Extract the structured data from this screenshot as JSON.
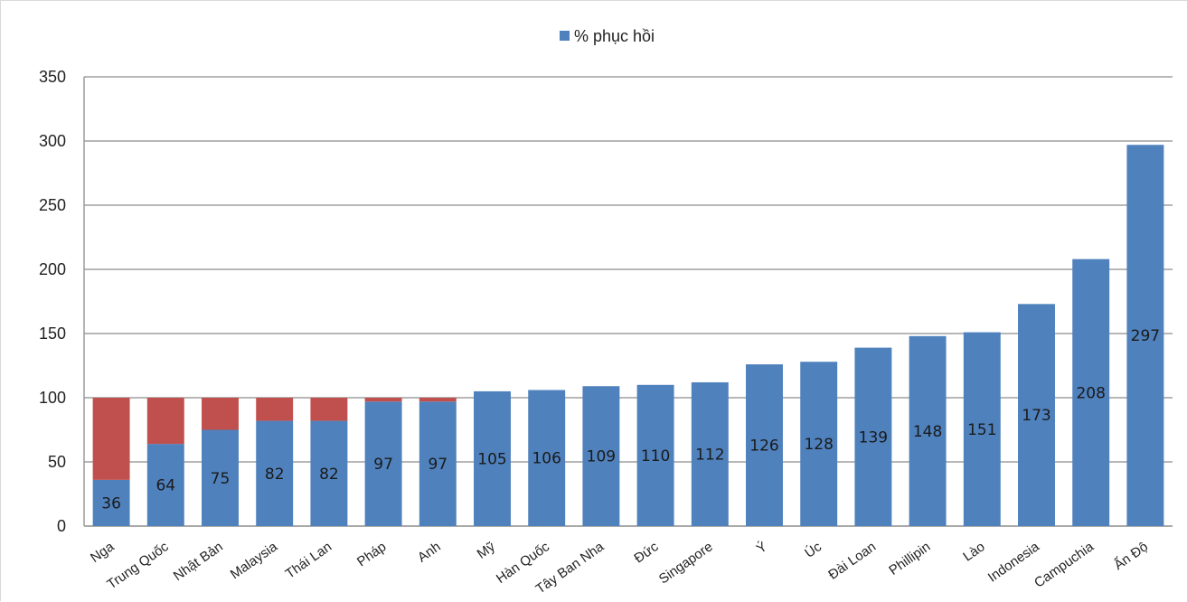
{
  "chart_data": {
    "type": "bar",
    "stacked": true,
    "reference_value": 100,
    "categories": [
      "Nga",
      "Trung Quốc",
      "Nhật Bản",
      "Malaysia",
      "Thái Lan",
      "Pháp",
      "Anh",
      "Mỹ",
      "Hàn Quốc",
      "Tây Ban Nha",
      "Đức",
      "Singapore",
      "Ý",
      "Úc",
      "Đài Loan",
      "Phillipin",
      "Lào",
      "Indonesia",
      "Campuchia",
      "Ấn Độ"
    ],
    "series": [
      {
        "name": "% phục hồi",
        "color": "#4f81bd",
        "values": [
          36,
          64,
          75,
          82,
          82,
          97,
          97,
          105,
          106,
          109,
          110,
          112,
          126,
          128,
          139,
          148,
          151,
          173,
          208,
          297
        ]
      }
    ],
    "shortfall_color": "#c0504d",
    "data_labels": [
      "36",
      "64",
      "75",
      "82",
      "82",
      "97",
      "97",
      "105",
      "106",
      "109",
      "110",
      "112",
      "126",
      "128",
      "139",
      "148",
      "151",
      "173",
      "208",
      "297"
    ],
    "ylim": [
      0,
      350
    ],
    "yticks": [
      0,
      50,
      100,
      150,
      200,
      250,
      300,
      350
    ],
    "grid": true,
    "legend_position": "top-center"
  }
}
